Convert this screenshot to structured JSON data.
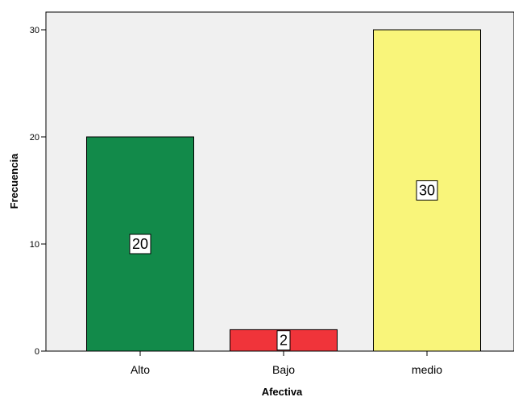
{
  "chart_data": {
    "type": "bar",
    "categories": [
      "Alto",
      "Bajo",
      "medio"
    ],
    "values": [
      20,
      2,
      30
    ],
    "data_labels": [
      "20",
      "2",
      "30"
    ],
    "colors": [
      "#128a4a",
      "#f0343a",
      "#f9f57a"
    ],
    "xlabel": "Afectiva",
    "ylabel": "Frecuencia",
    "ylim": [
      0,
      30
    ],
    "yticks": [
      0,
      10,
      20,
      30
    ],
    "ytick_labels": [
      "0",
      "10",
      "20",
      "30"
    ],
    "grid": false,
    "plot_background": "#f0f0f0"
  }
}
